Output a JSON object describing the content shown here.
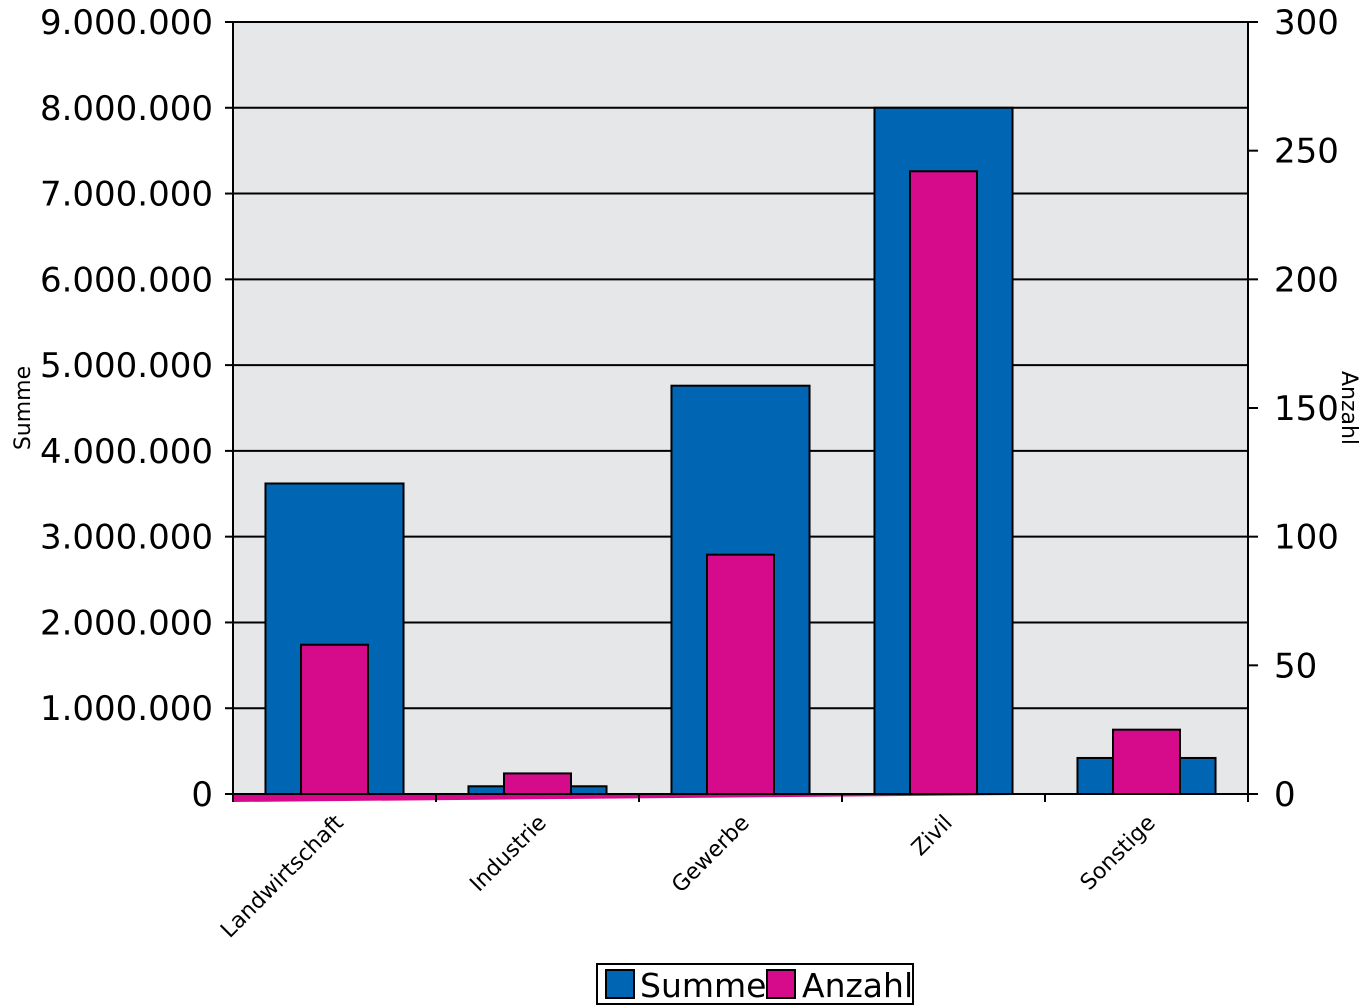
{
  "chart_data": {
    "type": "bar",
    "categories": [
      "Landwirtschaft",
      "Industrie",
      "Gewerbe",
      "Zivil",
      "Sonstige"
    ],
    "series": [
      {
        "name": "Summe",
        "axis": "left",
        "values": [
          3620000,
          90000,
          4760000,
          8000000,
          420000
        ]
      },
      {
        "name": "Anzahl",
        "axis": "right",
        "values": [
          58,
          8,
          93,
          242,
          25
        ]
      }
    ],
    "colors": {
      "Summe": "#0066b3",
      "Anzahl": "#d60b8c",
      "plot_background": "#e6e7e9",
      "baseline": "#d60b8c"
    },
    "left_axis": {
      "label": "Summe",
      "ylim": [
        0,
        9000000
      ],
      "ticks": [
        "0",
        "1.000.000",
        "2.000.000",
        "3.000.000",
        "4.000.000",
        "5.000.000",
        "6.000.000",
        "7.000.000",
        "8.000.000",
        "9.000.000"
      ]
    },
    "right_axis": {
      "label": "Anzahl",
      "ylim": [
        0,
        300
      ],
      "ticks": [
        "0",
        "50",
        "100",
        "150",
        "200",
        "250",
        "300"
      ]
    },
    "grid": true,
    "legend": {
      "position": "bottom",
      "entries": [
        "Summe",
        "Anzahl"
      ]
    }
  }
}
